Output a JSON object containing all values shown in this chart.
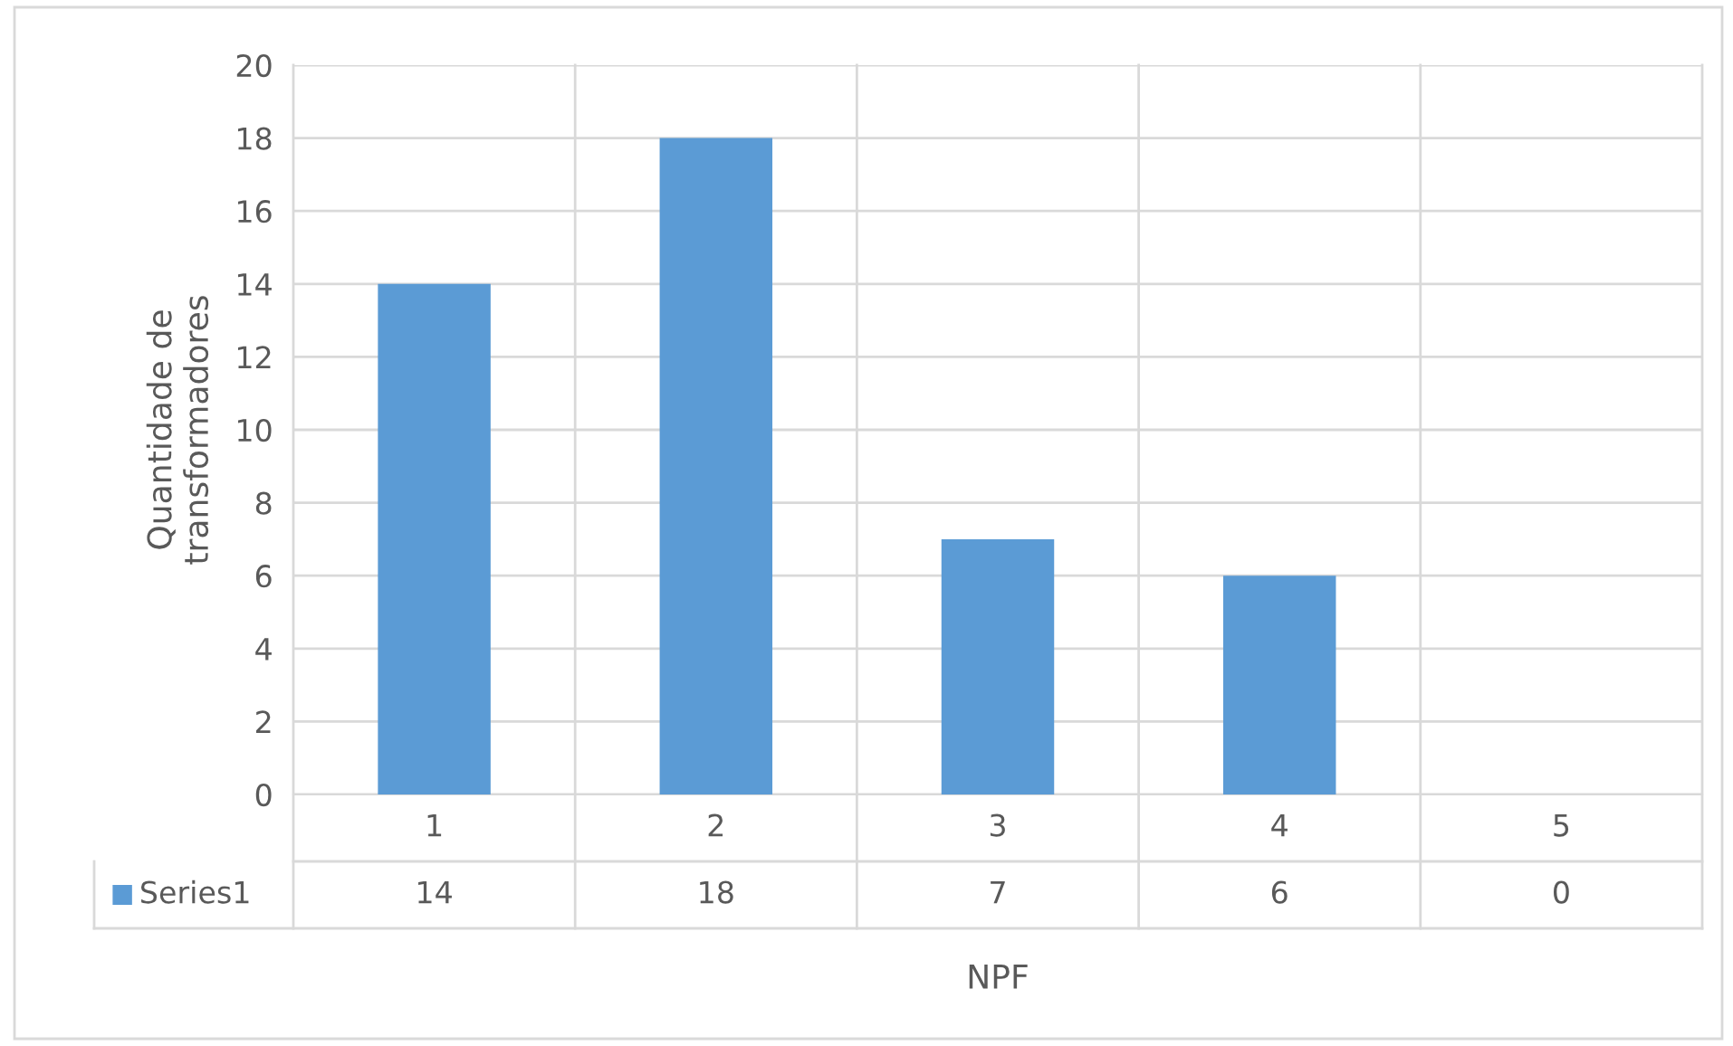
{
  "chart_data": {
    "type": "bar",
    "xlabel": "NPF",
    "ylabel": "Quantidade de\ntransformadores",
    "categories": [
      "1",
      "2",
      "3",
      "4",
      "5"
    ],
    "series": [
      {
        "name": "Series1",
        "color": "#5b9bd5",
        "values": [
          14,
          18,
          7,
          6,
          0
        ]
      }
    ],
    "ylim": [
      0,
      20
    ],
    "yticks": [
      0,
      2,
      4,
      6,
      8,
      10,
      12,
      14,
      16,
      18,
      20
    ],
    "grid": "y",
    "data_labels": true,
    "legend": "bottom"
  }
}
